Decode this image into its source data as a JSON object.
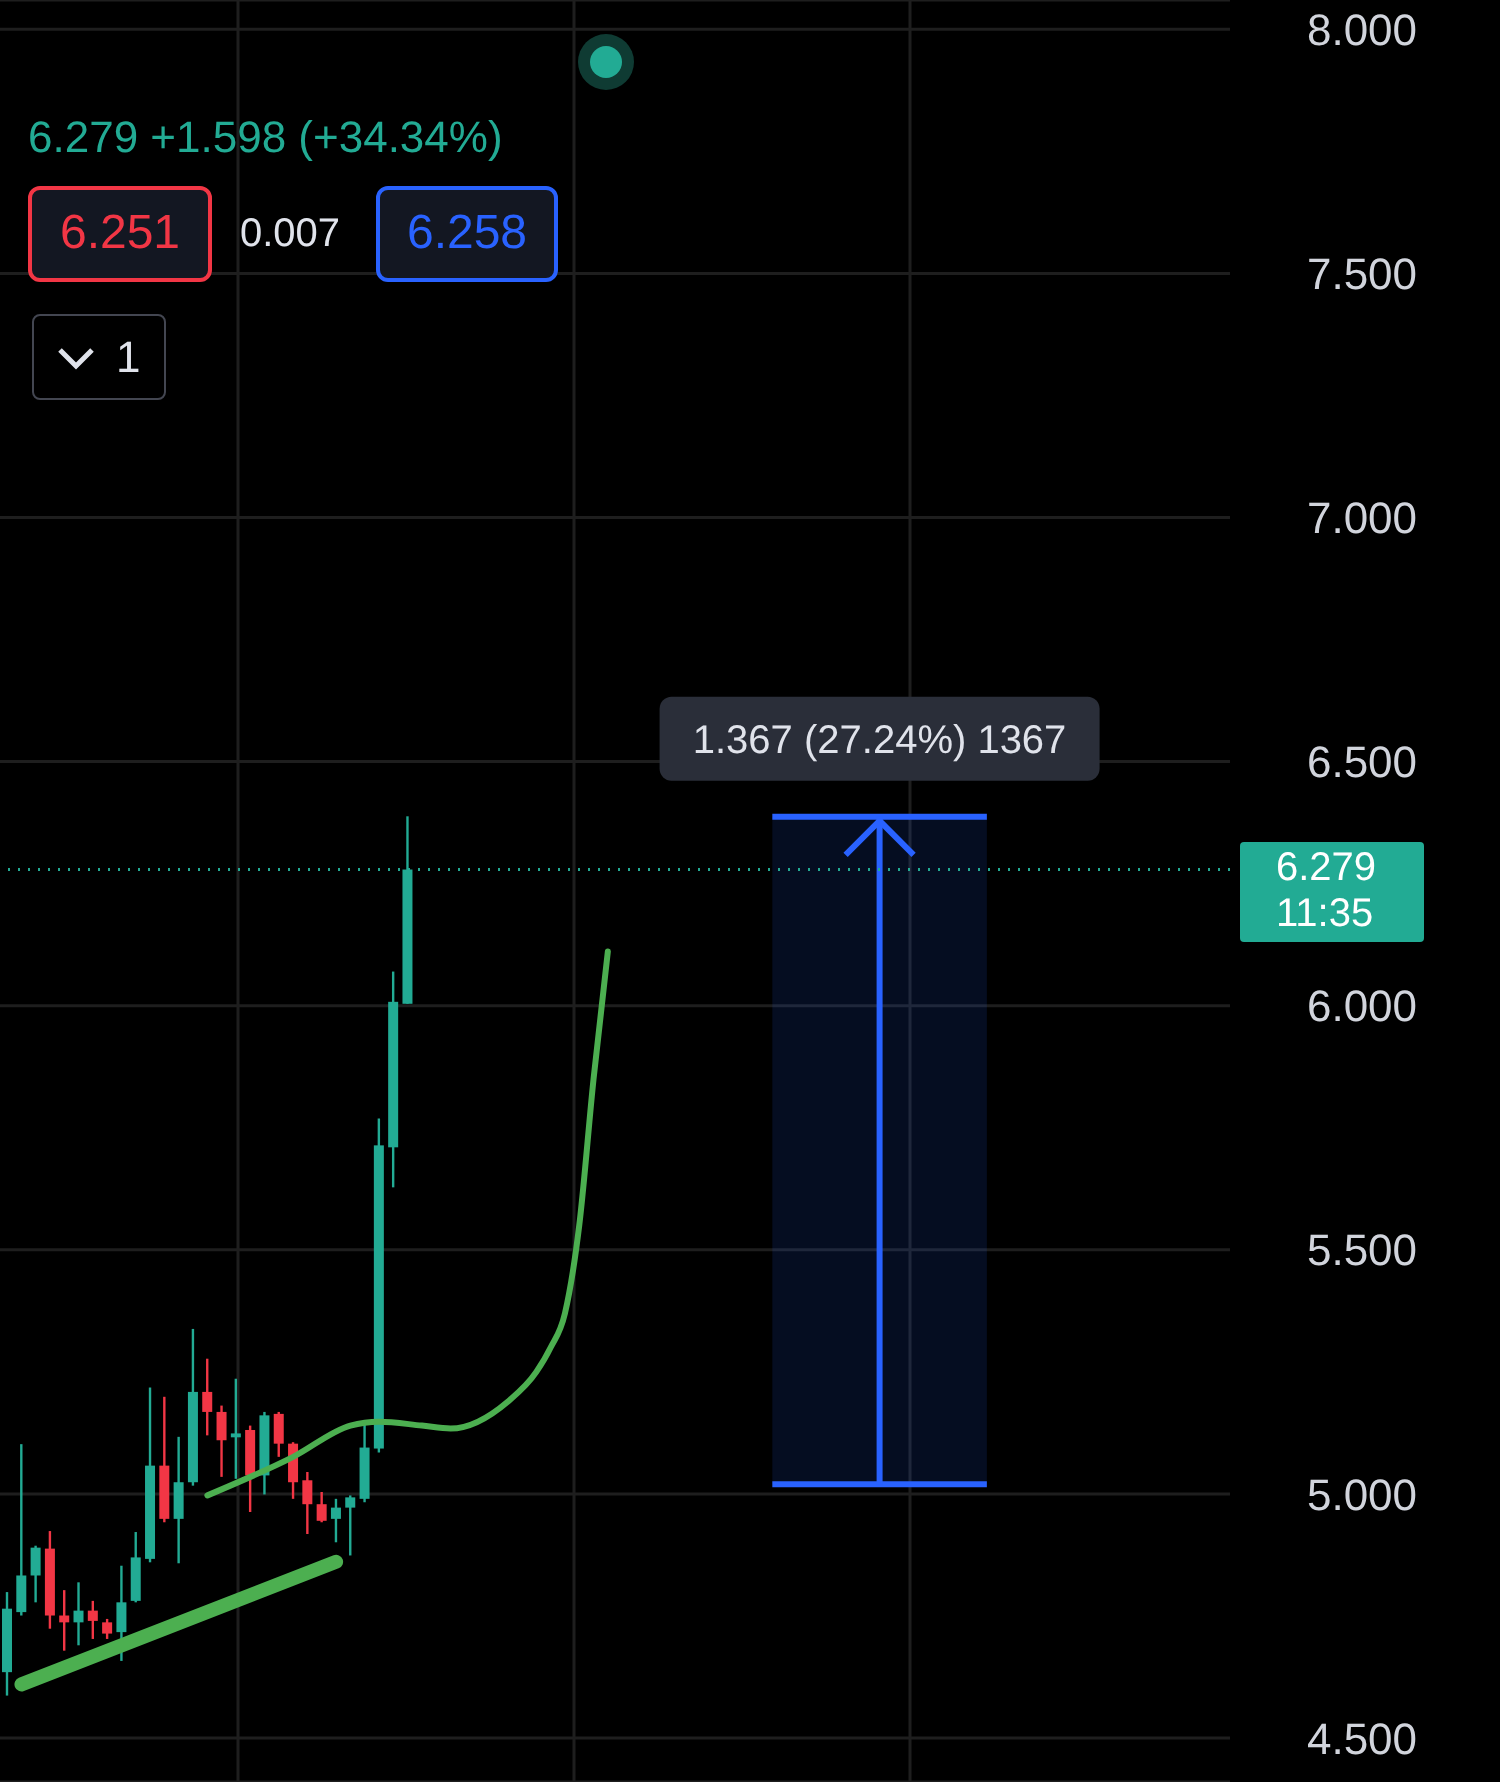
{
  "chart_data": {
    "type": "candlestick",
    "subtitle": "6.279 +1.598 (+34.34%)",
    "annotations": [
      "6.251",
      "0.007",
      "6.258",
      "1"
    ],
    "categories": [
      null,
      null,
      null,
      null,
      null,
      null,
      null,
      null,
      null,
      null,
      null,
      null,
      null,
      null,
      null,
      null,
      null,
      null,
      null,
      null,
      null,
      null,
      null,
      null,
      null,
      null,
      null,
      null,
      null,
      null,
      null,
      null,
      null,
      null,
      null,
      null,
      null,
      null,
      null,
      null,
      null,
      null,
      null,
      null,
      null,
      null,
      null,
      null,
      null,
      null,
      null,
      null,
      null,
      null,
      null,
      null,
      null,
      null,
      null,
      null,
      null,
      null,
      null,
      null,
      null,
      null,
      null,
      null,
      null,
      null,
      null,
      null,
      null,
      null,
      null,
      null,
      null,
      null,
      null,
      null,
      null,
      null,
      null,
      null,
      null,
      null
    ],
    "ohlc": [
      [
        4.635,
        4.799,
        4.587,
        4.765
      ],
      [
        4.758,
        5.102,
        4.751,
        4.833
      ],
      [
        4.833,
        4.894,
        4.778,
        4.89
      ],
      [
        4.888,
        4.924,
        4.724,
        4.751
      ],
      [
        4.751,
        4.803,
        4.679,
        4.737
      ],
      [
        4.737,
        4.819,
        4.69,
        4.761
      ],
      [
        4.761,
        4.781,
        4.703,
        4.74
      ],
      [
        4.737,
        4.744,
        4.703,
        4.714
      ],
      [
        4.717,
        4.853,
        4.658,
        4.778
      ],
      [
        4.781,
        4.922,
        4.778,
        4.87
      ],
      [
        4.867,
        5.218,
        4.86,
        5.058
      ],
      [
        5.058,
        5.199,
        4.942,
        4.949
      ],
      [
        4.949,
        5.117,
        4.858,
        5.024
      ],
      [
        5.024,
        5.338,
        5.017,
        5.209
      ],
      [
        5.209,
        5.277,
        5.12,
        5.168
      ],
      [
        5.168,
        5.181,
        5.035,
        5.11
      ],
      [
        5.116,
        5.236,
        5.031,
        5.124
      ],
      [
        5.131,
        5.14,
        4.963,
        5.038
      ],
      [
        5.038,
        5.168,
        4.999,
        5.161
      ],
      [
        5.164,
        5.168,
        5.076,
        5.103
      ],
      [
        5.103,
        5.106,
        4.99,
        5.024
      ],
      [
        5.028,
        5.045,
        4.918,
        4.979
      ],
      [
        4.979,
        5.004,
        4.942,
        4.945
      ],
      [
        4.949,
        4.99,
        4.901,
        4.972
      ],
      [
        4.972,
        4.997,
        4.874,
        4.993
      ],
      [
        4.99,
        5.147,
        4.983,
        5.095
      ],
      [
        5.093,
        5.769,
        5.085,
        5.714
      ],
      [
        5.71,
        6.07,
        5.628,
        6.008
      ],
      [
        6.004,
        6.388,
        6.004,
        6.279
      ],
      null,
      null,
      null,
      null,
      null,
      null,
      null,
      null,
      null,
      null,
      null,
      null,
      null,
      null,
      null,
      null,
      null,
      null,
      null,
      null,
      null,
      null,
      null,
      null,
      null,
      null,
      null,
      null,
      null,
      null,
      null,
      null,
      null,
      null,
      null,
      null,
      null,
      null,
      null,
      null,
      null,
      null,
      null,
      null,
      null,
      null,
      null,
      null,
      null,
      null,
      null,
      null,
      null,
      null,
      null,
      null,
      null
    ],
    "colors": [
      "#22ab94",
      "#22ab94",
      "#22ab94",
      "#f23645",
      "#f23645",
      "#22ab94",
      "#f23645",
      "#f23645",
      "#22ab94",
      "#22ab94",
      "#22ab94",
      "#f23645",
      "#22ab94",
      "#22ab94",
      "#f23645",
      "#f23645",
      "#22ab94",
      "#f23645",
      "#22ab94",
      "#f23645",
      "#f23645",
      "#f23645",
      "#f23645",
      "#22ab94",
      "#22ab94",
      "#22ab94",
      "#22ab94",
      "#22ab94",
      "#22ab94",
      null,
      null,
      null,
      null,
      null,
      null,
      null,
      null,
      null,
      null,
      null,
      null,
      null,
      null,
      null,
      null,
      null,
      null,
      null,
      null,
      null,
      null,
      null,
      null,
      null,
      null,
      null,
      null,
      null,
      null,
      null,
      null,
      null,
      null,
      null,
      null,
      null,
      null,
      null,
      null,
      null,
      null,
      null,
      null,
      null,
      null,
      null,
      null,
      null,
      null,
      null,
      null,
      null,
      null,
      null,
      null,
      null
    ],
    "series": [
      {
        "type": "line",
        "color": "#4caf50",
        "values": [
          null,
          null,
          null,
          null,
          null,
          null,
          null,
          null,
          null,
          null,
          null,
          null,
          null,
          null,
          4.997,
          null,
          null,
          null,
          null,
          null,
          5.076,
          null,
          null,
          null,
          5.14,
          null,
          5.148,
          null,
          null,
          5.14,
          null,
          5.134,
          null,
          null,
          null,
          5.189,
          null,
          5.25,
          5.3,
          5.37,
          5.55,
          5.85,
          6.111,
          null,
          null,
          null,
          null,
          null,
          null,
          null,
          null,
          null,
          null,
          null,
          null,
          null,
          null,
          null,
          null,
          null,
          null,
          null,
          null,
          null,
          null,
          null,
          null,
          null,
          null,
          null,
          null,
          null,
          null,
          null,
          null,
          null,
          null,
          null,
          null,
          null,
          null,
          null,
          null,
          null,
          null,
          null
        ]
      },
      {
        "type": "line",
        "color": "#4caf50",
        "values": [
          null,
          4.61,
          null,
          null,
          null,
          null,
          null,
          null,
          null,
          null,
          null,
          null,
          null,
          null,
          null,
          null,
          null,
          null,
          null,
          null,
          null,
          null,
          null,
          4.861,
          null,
          null,
          null,
          null,
          null,
          null,
          null,
          null,
          null,
          null,
          null,
          null,
          null,
          null,
          null,
          null,
          null,
          null,
          null,
          null,
          null,
          null,
          null,
          null,
          null,
          null,
          null,
          null,
          null,
          null,
          null,
          null,
          null,
          null,
          null,
          null,
          null,
          null,
          null,
          null,
          null,
          null,
          null,
          null,
          null,
          null,
          null,
          null,
          null,
          null,
          null,
          null,
          null,
          null,
          null,
          null,
          null,
          null,
          null,
          null,
          null,
          null
        ]
      }
    ],
    "ylim": [
      4.41,
      8.06
    ],
    "yticks": [
      {
        "value": 4.5,
        "label": "4.500"
      },
      {
        "value": 5.0,
        "label": "5.000"
      },
      {
        "value": 5.5,
        "label": "5.500"
      },
      {
        "value": 6.0,
        "label": "6.000"
      },
      {
        "value": 6.5,
        "label": "6.500"
      },
      {
        "value": 7.0,
        "label": "7.000"
      },
      {
        "value": 7.5,
        "label": "7.500"
      },
      {
        "value": 8.0,
        "label": "8.000"
      }
    ],
    "tick_labels": "y",
    "grid": true,
    "legend": false,
    "ref_lines": [
      {
        "axis": "y",
        "value": 6.279,
        "label": "6.279 11:35",
        "color": "#22ab94",
        "line_style": "dotted"
      }
    ],
    "bands": [
      {
        "axis": "y",
        "from": 5.02,
        "to": 6.387,
        "label": "1.367 (27.24%) 1367",
        "color": "#2962ff"
      }
    ]
  }
}
